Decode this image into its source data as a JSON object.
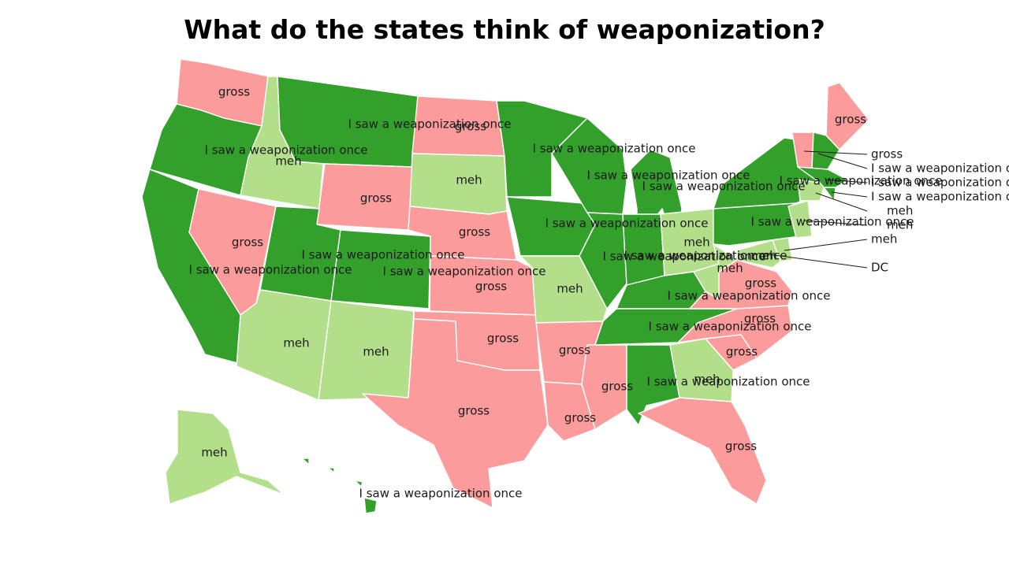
{
  "title": "What do the states think of weaponization?",
  "colors": {
    "gross": "#fc9b9b",
    "meh": "#b3df8a",
    "once": "#33a02c",
    "border": "#ffffff"
  },
  "states": [
    {
      "id": "WA",
      "label": "gross",
      "cat": "gross"
    },
    {
      "id": "OR",
      "label": "I saw a weaponization once",
      "cat": "once"
    },
    {
      "id": "CA",
      "label": "I saw a weaponization once",
      "cat": "once"
    },
    {
      "id": "ID",
      "label": "meh",
      "cat": "meh"
    },
    {
      "id": "NV",
      "label": "gross",
      "cat": "gross"
    },
    {
      "id": "MT",
      "label": "I saw a weaponization once",
      "cat": "once"
    },
    {
      "id": "WY",
      "label": "gross",
      "cat": "gross"
    },
    {
      "id": "UT",
      "label": "I saw a weaponization once",
      "cat": "once"
    },
    {
      "id": "CO",
      "label": "I saw a weaponization once",
      "cat": "once"
    },
    {
      "id": "AZ",
      "label": "meh",
      "cat": "meh"
    },
    {
      "id": "NM",
      "label": "meh",
      "cat": "meh"
    },
    {
      "id": "ND",
      "label": "gross",
      "cat": "gross"
    },
    {
      "id": "SD",
      "label": "meh",
      "cat": "meh"
    },
    {
      "id": "NE",
      "label": "gross",
      "cat": "gross"
    },
    {
      "id": "KS",
      "label": "gross",
      "cat": "gross"
    },
    {
      "id": "OK",
      "label": "gross",
      "cat": "gross"
    },
    {
      "id": "TX",
      "label": "gross",
      "cat": "gross"
    },
    {
      "id": "MN",
      "label": "I saw a weaponization once",
      "cat": "once"
    },
    {
      "id": "IA",
      "label": "I saw a weaponization once",
      "cat": "once"
    },
    {
      "id": "MO",
      "label": "meh",
      "cat": "meh"
    },
    {
      "id": "AR",
      "label": "gross",
      "cat": "gross"
    },
    {
      "id": "LA",
      "label": "gross",
      "cat": "gross"
    },
    {
      "id": "WI",
      "label": "I saw a weaponization once",
      "cat": "once"
    },
    {
      "id": "IL",
      "label": "I saw a weaponization once",
      "cat": "once"
    },
    {
      "id": "MI",
      "label": "I saw a weaponization once",
      "cat": "once"
    },
    {
      "id": "IN",
      "label": "I saw a weaponization once",
      "cat": "once"
    },
    {
      "id": "OH",
      "label": "meh",
      "cat": "meh"
    },
    {
      "id": "KY",
      "label": "I saw a weaponization once",
      "cat": "once"
    },
    {
      "id": "TN",
      "label": "I saw a weaponization once",
      "cat": "once"
    },
    {
      "id": "MS",
      "label": "gross",
      "cat": "gross"
    },
    {
      "id": "AL",
      "label": "I saw a weaponization once",
      "cat": "once"
    },
    {
      "id": "GA",
      "label": "meh",
      "cat": "meh"
    },
    {
      "id": "FL",
      "label": "gross",
      "cat": "gross"
    },
    {
      "id": "SC",
      "label": "gross",
      "cat": "gross"
    },
    {
      "id": "NC",
      "label": "gross",
      "cat": "gross"
    },
    {
      "id": "VA",
      "label": "gross",
      "cat": "gross"
    },
    {
      "id": "WV",
      "label": "meh",
      "cat": "meh"
    },
    {
      "id": "PA",
      "label": "I saw a weaponization once",
      "cat": "once"
    },
    {
      "id": "NY",
      "label": "I saw a weaponization once",
      "cat": "once"
    },
    {
      "id": "ME",
      "label": "gross",
      "cat": "gross"
    },
    {
      "id": "AK",
      "label": "meh",
      "cat": "meh"
    },
    {
      "id": "HI",
      "label": "I saw a weaponization once",
      "cat": "once"
    },
    {
      "id": "VT",
      "label": "gross",
      "cat": "gross"
    },
    {
      "id": "NH",
      "label": "I saw a weaponization once",
      "cat": "once"
    },
    {
      "id": "MA",
      "label": "I saw a weaponization once",
      "cat": "once"
    },
    {
      "id": "RI",
      "label": "I saw a weaponization once",
      "cat": "once"
    },
    {
      "id": "CT",
      "label": "meh",
      "cat": "meh"
    },
    {
      "id": "NJ",
      "label": "meh",
      "cat": "meh"
    },
    {
      "id": "DE",
      "label": "meh",
      "cat": "meh"
    },
    {
      "id": "MD",
      "label": "meh",
      "cat": "meh"
    },
    {
      "id": "DC",
      "label": "DC",
      "cat": "once"
    }
  ]
}
